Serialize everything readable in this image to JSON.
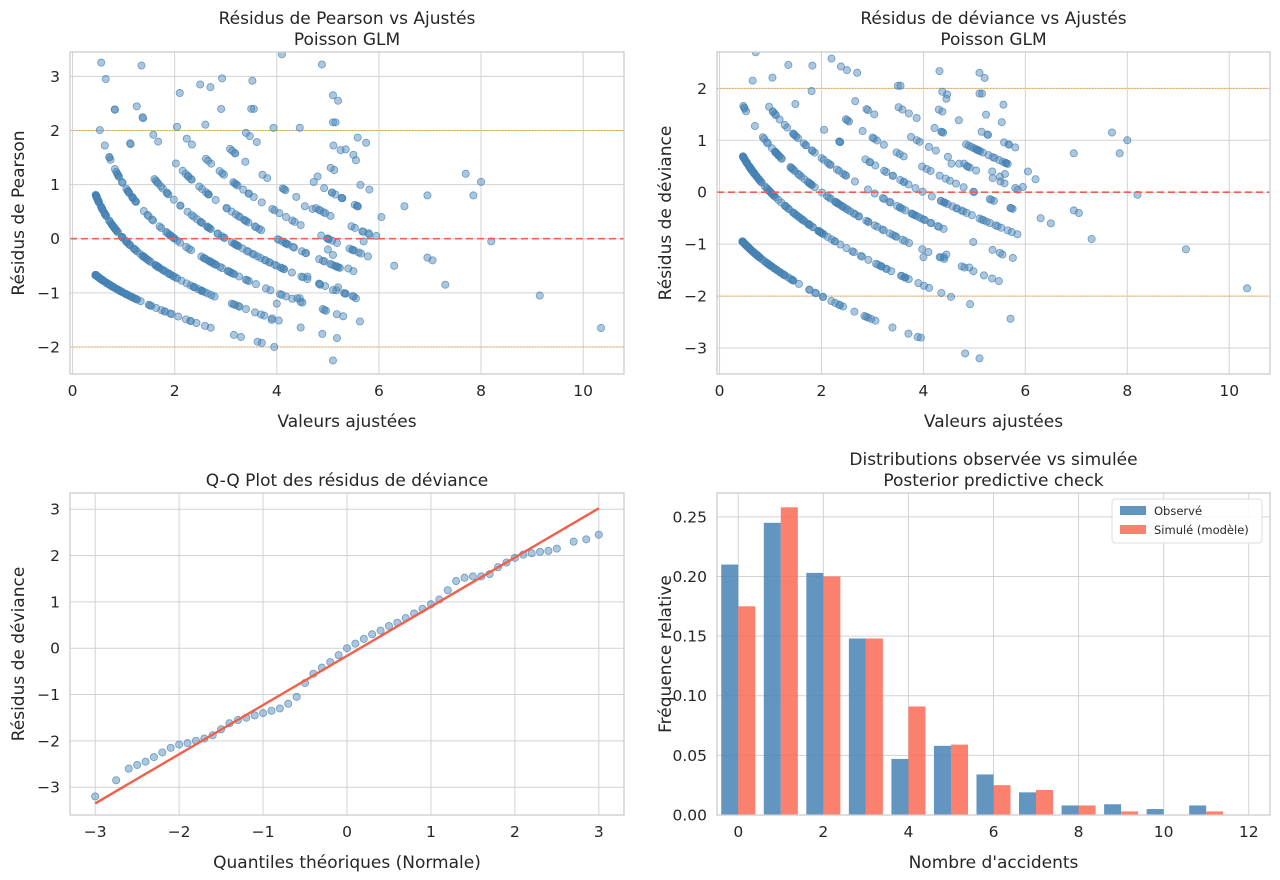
{
  "colors": {
    "point": "#4682b4",
    "zero_line": "#f0604a",
    "band_line": "#e8a33a",
    "observed": "#4682b4",
    "simulated": "#fa6a55",
    "grid": "#d3d3d3",
    "frame": "#cccccc"
  },
  "chart_data": [
    {
      "id": "pearson",
      "type": "scatter",
      "title": "Résidus de Pearson vs Ajustés",
      "subtitle": "Poisson GLM",
      "xlabel": "Valeurs ajustées",
      "ylabel": "Résidus de Pearson",
      "xlim": [
        -0.05,
        10.8
      ],
      "ylim": [
        -2.5,
        3.45
      ],
      "xticks": [
        0,
        2,
        4,
        6,
        8,
        10
      ],
      "yticks": [
        -2,
        -1,
        0,
        1,
        2,
        3
      ],
      "hlines": [
        {
          "y": 0,
          "style": "dashed",
          "color": "zero"
        },
        {
          "y": 2,
          "style": "dotted",
          "color": "band"
        },
        {
          "y": -2,
          "style": "dotted",
          "color": "band"
        }
      ],
      "residual_type": "pearson",
      "sample_count": 520,
      "outliers": [
        [
          0.65,
          2.95
        ],
        [
          1.35,
          3.2
        ],
        [
          2.5,
          2.85
        ],
        [
          2.7,
          2.8
        ],
        [
          5.1,
          2.65
        ],
        [
          5.2,
          2.55
        ],
        [
          5.1,
          2.15
        ],
        [
          5.15,
          2.15
        ],
        [
          4.45,
          2.05
        ],
        [
          3.5,
          2.4
        ],
        [
          3.55,
          2.4
        ],
        [
          4.55,
          0.6
        ],
        [
          4.7,
          0.55
        ],
        [
          4.8,
          1.15
        ],
        [
          5.35,
          1.65
        ],
        [
          5.5,
          1.55
        ],
        [
          5.55,
          1.45
        ],
        [
          5.95,
          0.05
        ],
        [
          6.05,
          0.4
        ],
        [
          6.5,
          0.6
        ],
        [
          6.3,
          -0.5
        ],
        [
          6.95,
          -0.35
        ],
        [
          6.95,
          0.8
        ],
        [
          7.05,
          -0.4
        ],
        [
          7.3,
          -0.85
        ],
        [
          7.7,
          1.2
        ],
        [
          7.85,
          0.8
        ],
        [
          8.0,
          1.05
        ],
        [
          8.2,
          -0.05
        ],
        [
          5.7,
          -0.05
        ],
        [
          5.8,
          0.1
        ],
        [
          9.15,
          -1.05
        ],
        [
          10.35,
          -1.65
        ],
        [
          3.95,
          -2.0
        ],
        [
          5.1,
          -2.25
        ],
        [
          4.9,
          -1.3
        ],
        [
          5.55,
          -1.1
        ],
        [
          4.0,
          -1.2
        ],
        [
          3.9,
          -1.5
        ],
        [
          4.4,
          -1.1
        ],
        [
          4.45,
          -1.1
        ],
        [
          4.6,
          -0.7
        ],
        [
          4.85,
          -0.85
        ],
        [
          5.1,
          -0.95
        ],
        [
          5.2,
          -0.9
        ],
        [
          5.4,
          -0.55
        ],
        [
          5.5,
          -0.6
        ],
        [
          5.1,
          -0.3
        ],
        [
          5.0,
          -0.2
        ]
      ]
    },
    {
      "id": "deviance",
      "type": "scatter",
      "title": "Résidus de déviance vs Ajustés",
      "subtitle": "Poisson GLM",
      "xlabel": "Valeurs ajustées",
      "ylabel": "Résidus de déviance",
      "xlim": [
        -0.05,
        10.8
      ],
      "ylim": [
        -3.5,
        2.7
      ],
      "xticks": [
        0,
        2,
        4,
        6,
        8,
        10
      ],
      "yticks": [
        -3,
        -2,
        -1,
        0,
        1,
        2
      ],
      "hlines": [
        {
          "y": 0,
          "style": "dashed",
          "color": "zero"
        },
        {
          "y": 2,
          "style": "dotted",
          "color": "band"
        },
        {
          "y": -2,
          "style": "dotted",
          "color": "band"
        }
      ],
      "residual_type": "deviance",
      "sample_count": 520,
      "outliers": [
        [
          0.65,
          2.15
        ],
        [
          1.35,
          2.45
        ],
        [
          2.5,
          2.35
        ],
        [
          2.7,
          2.3
        ],
        [
          5.1,
          2.3
        ],
        [
          5.2,
          2.2
        ],
        [
          5.15,
          1.9
        ],
        [
          5.1,
          1.9
        ],
        [
          4.45,
          1.8
        ],
        [
          3.5,
          2.05
        ],
        [
          3.55,
          2.05
        ],
        [
          7.7,
          1.15
        ],
        [
          8.0,
          1.0
        ],
        [
          7.85,
          0.75
        ],
        [
          6.95,
          0.75
        ],
        [
          8.2,
          -0.05
        ],
        [
          9.15,
          -1.1
        ],
        [
          10.35,
          -1.85
        ],
        [
          3.95,
          -2.8
        ],
        [
          5.1,
          -3.2
        ],
        [
          4.9,
          -1.45
        ],
        [
          5.55,
          -1.2
        ],
        [
          6.3,
          -0.5
        ],
        [
          6.5,
          -0.6
        ],
        [
          7.3,
          -0.9
        ],
        [
          7.05,
          -0.4
        ],
        [
          6.95,
          -0.35
        ],
        [
          6.05,
          0.4
        ],
        [
          6.2,
          0.25
        ],
        [
          5.95,
          0.1
        ],
        [
          5.85,
          0.05
        ],
        [
          5.35,
          0.4
        ],
        [
          5.5,
          0.3
        ],
        [
          5.6,
          0.35
        ],
        [
          4.8,
          0.55
        ],
        [
          4.55,
          0.55
        ],
        [
          4.7,
          0.55
        ],
        [
          3.9,
          -1.75
        ],
        [
          4.0,
          -1.25
        ],
        [
          4.4,
          -1.25
        ],
        [
          4.45,
          -1.2
        ]
      ]
    },
    {
      "id": "qq",
      "type": "scatter",
      "title": "Q-Q Plot des résidus de déviance",
      "xlabel": "Quantiles théoriques (Normale)",
      "ylabel": "Résidus de déviance",
      "xlim": [
        -3.3,
        3.3
      ],
      "ylim": [
        -3.6,
        3.35
      ],
      "xticks": [
        -3,
        -2,
        -1,
        0,
        1,
        2,
        3
      ],
      "yticks": [
        -3,
        -2,
        -1,
        0,
        1,
        2,
        3
      ],
      "reference_line": {
        "x": [
          -3.0,
          3.0
        ],
        "y": [
          -3.35,
          3.02
        ]
      },
      "points": [
        [
          -3.0,
          -3.2
        ],
        [
          -2.75,
          -2.85
        ],
        [
          -2.6,
          -2.6
        ],
        [
          -2.5,
          -2.52
        ],
        [
          -2.4,
          -2.45
        ],
        [
          -2.3,
          -2.35
        ],
        [
          -2.2,
          -2.25
        ],
        [
          -2.1,
          -2.15
        ],
        [
          -2.0,
          -2.08
        ],
        [
          -1.9,
          -2.05
        ],
        [
          -1.8,
          -2.0
        ],
        [
          -1.7,
          -1.95
        ],
        [
          -1.6,
          -1.88
        ],
        [
          -1.5,
          -1.75
        ],
        [
          -1.4,
          -1.62
        ],
        [
          -1.3,
          -1.55
        ],
        [
          -1.2,
          -1.5
        ],
        [
          -1.1,
          -1.45
        ],
        [
          -1.0,
          -1.4
        ],
        [
          -0.9,
          -1.35
        ],
        [
          -0.8,
          -1.3
        ],
        [
          -0.7,
          -1.2
        ],
        [
          -0.6,
          -1.05
        ],
        [
          -0.5,
          -0.75
        ],
        [
          -0.4,
          -0.55
        ],
        [
          -0.3,
          -0.42
        ],
        [
          -0.2,
          -0.3
        ],
        [
          -0.1,
          -0.15
        ],
        [
          0.0,
          0.0
        ],
        [
          0.1,
          0.1
        ],
        [
          0.2,
          0.2
        ],
        [
          0.3,
          0.3
        ],
        [
          0.4,
          0.38
        ],
        [
          0.5,
          0.48
        ],
        [
          0.6,
          0.55
        ],
        [
          0.7,
          0.65
        ],
        [
          0.8,
          0.75
        ],
        [
          0.9,
          0.85
        ],
        [
          1.0,
          0.95
        ],
        [
          1.1,
          1.05
        ],
        [
          1.2,
          1.25
        ],
        [
          1.3,
          1.45
        ],
        [
          1.4,
          1.52
        ],
        [
          1.5,
          1.55
        ],
        [
          1.6,
          1.55
        ],
        [
          1.7,
          1.6
        ],
        [
          1.8,
          1.75
        ],
        [
          1.9,
          1.85
        ],
        [
          2.0,
          1.95
        ],
        [
          2.1,
          2.02
        ],
        [
          2.2,
          2.05
        ],
        [
          2.3,
          2.08
        ],
        [
          2.4,
          2.1
        ],
        [
          2.5,
          2.15
        ],
        [
          2.7,
          2.3
        ],
        [
          2.85,
          2.35
        ],
        [
          3.0,
          2.45
        ]
      ]
    },
    {
      "id": "ppc",
      "type": "bar",
      "title": "Distributions observée vs simulée",
      "subtitle": "Posterior predictive check",
      "xlabel": "Nombre d'accidents",
      "ylabel": "Fréquence relative",
      "xlim": [
        -0.5,
        12.5
      ],
      "ylim": [
        0,
        0.27
      ],
      "xticks": [
        0,
        2,
        4,
        6,
        8,
        10,
        12
      ],
      "yticks": [
        0,
        0.05,
        0.1,
        0.15,
        0.2,
        0.25
      ],
      "ytick_labels": [
        "0.00",
        "0.05",
        "0.10",
        "0.15",
        "0.20",
        "0.25"
      ],
      "categories": [
        0,
        1,
        2,
        3,
        4,
        5,
        6,
        7,
        8,
        9,
        10,
        11
      ],
      "series": [
        {
          "name": "Observé",
          "color": "observed",
          "values": [
            0.21,
            0.245,
            0.203,
            0.148,
            0.047,
            0.058,
            0.034,
            0.019,
            0.008,
            0.009,
            0.005,
            0.008
          ]
        },
        {
          "name": "Simulé (modèle)",
          "color": "simulated",
          "values": [
            0.175,
            0.258,
            0.2,
            0.148,
            0.091,
            0.059,
            0.025,
            0.021,
            0.008,
            0.003,
            0.0,
            0.003
          ]
        }
      ],
      "legend_position": "top-right"
    }
  ]
}
